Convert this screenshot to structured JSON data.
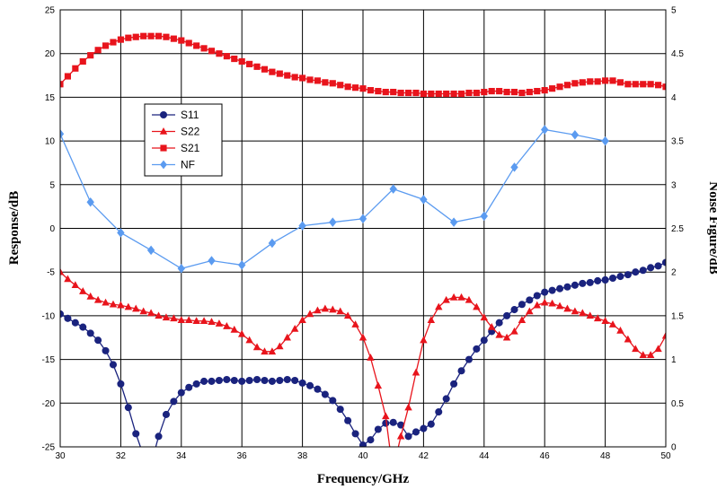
{
  "chart_data": {
    "type": "line",
    "xlabel": "Frequency/GHz",
    "ylabel": "Response/dB",
    "y2label": "Noise Figure/dB",
    "xlim": [
      30,
      50
    ],
    "ylim": [
      -25,
      25
    ],
    "y2lim": [
      0,
      5
    ],
    "x_ticks": [
      30,
      32,
      34,
      36,
      38,
      40,
      42,
      44,
      46,
      48,
      50
    ],
    "y_ticks": [
      -25,
      -20,
      -15,
      -10,
      -5,
      0,
      5,
      10,
      15,
      20,
      25
    ],
    "y2_ticks": [
      0,
      0.5,
      1,
      1.5,
      2,
      2.5,
      3,
      3.5,
      4,
      4.5,
      5
    ],
    "grid": true,
    "legend_position": "upper-left inside",
    "series": [
      {
        "name": "S11",
        "axis": "left",
        "color": "#1a237e",
        "marker": "circle",
        "points": [
          [
            30,
            -9.8
          ],
          [
            30.25,
            -10.3
          ],
          [
            30.5,
            -10.8
          ],
          [
            30.75,
            -11.3
          ],
          [
            31,
            -12
          ],
          [
            31.25,
            -12.8
          ],
          [
            31.5,
            -14
          ],
          [
            31.75,
            -15.6
          ],
          [
            32,
            -17.8
          ],
          [
            32.25,
            -20.5
          ],
          [
            32.5,
            -23.5
          ],
          [
            32.75,
            -26
          ],
          [
            33,
            -27
          ],
          [
            33.25,
            -23.8
          ],
          [
            33.5,
            -21.3
          ],
          [
            33.75,
            -19.8
          ],
          [
            34,
            -18.8
          ],
          [
            34.25,
            -18.2
          ],
          [
            34.5,
            -17.8
          ],
          [
            34.75,
            -17.5
          ],
          [
            35,
            -17.5
          ],
          [
            35.25,
            -17.4
          ],
          [
            35.5,
            -17.3
          ],
          [
            35.75,
            -17.4
          ],
          [
            36,
            -17.5
          ],
          [
            36.25,
            -17.4
          ],
          [
            36.5,
            -17.3
          ],
          [
            36.75,
            -17.4
          ],
          [
            37,
            -17.5
          ],
          [
            37.25,
            -17.4
          ],
          [
            37.5,
            -17.3
          ],
          [
            37.75,
            -17.4
          ],
          [
            38,
            -17.7
          ],
          [
            38.25,
            -18
          ],
          [
            38.5,
            -18.4
          ],
          [
            38.75,
            -19
          ],
          [
            39,
            -19.7
          ],
          [
            39.25,
            -20.7
          ],
          [
            39.5,
            -22
          ],
          [
            39.75,
            -23.5
          ],
          [
            40,
            -24.8
          ],
          [
            40.25,
            -24.2
          ],
          [
            40.5,
            -23
          ],
          [
            40.75,
            -22.3
          ],
          [
            41,
            -22.2
          ],
          [
            41.25,
            -22.5
          ],
          [
            41.5,
            -23.8
          ],
          [
            41.75,
            -23.3
          ],
          [
            42,
            -22.9
          ],
          [
            42.25,
            -22.4
          ],
          [
            42.5,
            -21
          ],
          [
            42.75,
            -19.5
          ],
          [
            43,
            -17.8
          ],
          [
            43.25,
            -16.3
          ],
          [
            43.5,
            -15
          ],
          [
            43.75,
            -13.8
          ],
          [
            44,
            -12.8
          ],
          [
            44.25,
            -11.8
          ],
          [
            44.5,
            -10.8
          ],
          [
            44.75,
            -10
          ],
          [
            45,
            -9.3
          ],
          [
            45.25,
            -8.7
          ],
          [
            45.5,
            -8.2
          ],
          [
            45.75,
            -7.7
          ],
          [
            46,
            -7.3
          ],
          [
            46.25,
            -7.1
          ],
          [
            46.5,
            -6.9
          ],
          [
            46.75,
            -6.7
          ],
          [
            47,
            -6.5
          ],
          [
            47.25,
            -6.3
          ],
          [
            47.5,
            -6.2
          ],
          [
            47.75,
            -6
          ],
          [
            48,
            -5.9
          ],
          [
            48.25,
            -5.7
          ],
          [
            48.5,
            -5.5
          ],
          [
            48.75,
            -5.3
          ],
          [
            49,
            -5
          ],
          [
            49.25,
            -4.8
          ],
          [
            49.5,
            -4.5
          ],
          [
            49.75,
            -4.3
          ],
          [
            50,
            -3.9
          ]
        ]
      },
      {
        "name": "S22",
        "axis": "left",
        "color": "#e8141c",
        "marker": "triangle",
        "points": [
          [
            30,
            -5
          ],
          [
            30.25,
            -5.8
          ],
          [
            30.5,
            -6.5
          ],
          [
            30.75,
            -7.2
          ],
          [
            31,
            -7.8
          ],
          [
            31.25,
            -8.2
          ],
          [
            31.5,
            -8.5
          ],
          [
            31.75,
            -8.7
          ],
          [
            32,
            -8.8
          ],
          [
            32.25,
            -9
          ],
          [
            32.5,
            -9.2
          ],
          [
            32.75,
            -9.5
          ],
          [
            33,
            -9.7
          ],
          [
            33.25,
            -10
          ],
          [
            33.5,
            -10.2
          ],
          [
            33.75,
            -10.3
          ],
          [
            34,
            -10.5
          ],
          [
            34.25,
            -10.5
          ],
          [
            34.5,
            -10.6
          ],
          [
            34.75,
            -10.6
          ],
          [
            35,
            -10.7
          ],
          [
            35.25,
            -10.9
          ],
          [
            35.5,
            -11.2
          ],
          [
            35.75,
            -11.6
          ],
          [
            36,
            -12.1
          ],
          [
            36.25,
            -12.8
          ],
          [
            36.5,
            -13.6
          ],
          [
            36.75,
            -14.1
          ],
          [
            37,
            -14.1
          ],
          [
            37.25,
            -13.5
          ],
          [
            37.5,
            -12.5
          ],
          [
            37.75,
            -11.5
          ],
          [
            38,
            -10.5
          ],
          [
            38.25,
            -9.8
          ],
          [
            38.5,
            -9.4
          ],
          [
            38.75,
            -9.2
          ],
          [
            39,
            -9.3
          ],
          [
            39.25,
            -9.5
          ],
          [
            39.5,
            -10
          ],
          [
            39.75,
            -11
          ],
          [
            40,
            -12.5
          ],
          [
            40.25,
            -14.8
          ],
          [
            40.5,
            -18
          ],
          [
            40.75,
            -21.5
          ],
          [
            40.9,
            -25.5
          ],
          [
            41.1,
            -26
          ],
          [
            41.25,
            -23.8
          ],
          [
            41.5,
            -20.5
          ],
          [
            41.75,
            -16.5
          ],
          [
            42,
            -12.8
          ],
          [
            42.25,
            -10.5
          ],
          [
            42.5,
            -9
          ],
          [
            42.75,
            -8.2
          ],
          [
            43,
            -7.9
          ],
          [
            43.25,
            -7.9
          ],
          [
            43.5,
            -8.2
          ],
          [
            43.75,
            -9
          ],
          [
            44,
            -10.2
          ],
          [
            44.25,
            -11.3
          ],
          [
            44.5,
            -12.2
          ],
          [
            44.75,
            -12.5
          ],
          [
            45,
            -11.8
          ],
          [
            45.25,
            -10.5
          ],
          [
            45.5,
            -9.5
          ],
          [
            45.75,
            -8.8
          ],
          [
            46,
            -8.5
          ],
          [
            46.25,
            -8.6
          ],
          [
            46.5,
            -8.9
          ],
          [
            46.75,
            -9.2
          ],
          [
            47,
            -9.5
          ],
          [
            47.25,
            -9.7
          ],
          [
            47.5,
            -10
          ],
          [
            47.75,
            -10.3
          ],
          [
            48,
            -10.6
          ],
          [
            48.25,
            -11
          ],
          [
            48.5,
            -11.7
          ],
          [
            48.75,
            -12.7
          ],
          [
            49,
            -13.8
          ],
          [
            49.25,
            -14.5
          ],
          [
            49.5,
            -14.5
          ],
          [
            49.75,
            -13.8
          ],
          [
            50,
            -12.3
          ]
        ]
      },
      {
        "name": "S21",
        "axis": "left",
        "color": "#e8141c",
        "marker": "square",
        "points": [
          [
            30,
            16.5
          ],
          [
            30.25,
            17.4
          ],
          [
            30.5,
            18.3
          ],
          [
            30.75,
            19.1
          ],
          [
            31,
            19.8
          ],
          [
            31.25,
            20.4
          ],
          [
            31.5,
            20.9
          ],
          [
            31.75,
            21.3
          ],
          [
            32,
            21.6
          ],
          [
            32.25,
            21.8
          ],
          [
            32.5,
            21.9
          ],
          [
            32.75,
            22
          ],
          [
            33,
            22
          ],
          [
            33.25,
            22
          ],
          [
            33.5,
            21.9
          ],
          [
            33.75,
            21.7
          ],
          [
            34,
            21.5
          ],
          [
            34.25,
            21.2
          ],
          [
            34.5,
            20.9
          ],
          [
            34.75,
            20.6
          ],
          [
            35,
            20.3
          ],
          [
            35.25,
            20
          ],
          [
            35.5,
            19.7
          ],
          [
            35.75,
            19.4
          ],
          [
            36,
            19.1
          ],
          [
            36.25,
            18.8
          ],
          [
            36.5,
            18.5
          ],
          [
            36.75,
            18.2
          ],
          [
            37,
            17.9
          ],
          [
            37.25,
            17.7
          ],
          [
            37.5,
            17.5
          ],
          [
            37.75,
            17.3
          ],
          [
            38,
            17.2
          ],
          [
            38.25,
            17
          ],
          [
            38.5,
            16.9
          ],
          [
            38.75,
            16.7
          ],
          [
            39,
            16.6
          ],
          [
            39.25,
            16.4
          ],
          [
            39.5,
            16.2
          ],
          [
            39.75,
            16.1
          ],
          [
            40,
            16
          ],
          [
            40.25,
            15.8
          ],
          [
            40.5,
            15.7
          ],
          [
            40.75,
            15.6
          ],
          [
            41,
            15.6
          ],
          [
            41.25,
            15.5
          ],
          [
            41.5,
            15.5
          ],
          [
            41.75,
            15.5
          ],
          [
            42,
            15.4
          ],
          [
            42.25,
            15.4
          ],
          [
            42.5,
            15.4
          ],
          [
            42.75,
            15.4
          ],
          [
            43,
            15.4
          ],
          [
            43.25,
            15.4
          ],
          [
            43.5,
            15.5
          ],
          [
            43.75,
            15.5
          ],
          [
            44,
            15.6
          ],
          [
            44.25,
            15.7
          ],
          [
            44.5,
            15.7
          ],
          [
            44.75,
            15.6
          ],
          [
            45,
            15.6
          ],
          [
            45.25,
            15.5
          ],
          [
            45.5,
            15.6
          ],
          [
            45.75,
            15.7
          ],
          [
            46,
            15.8
          ],
          [
            46.25,
            16
          ],
          [
            46.5,
            16.2
          ],
          [
            46.75,
            16.4
          ],
          [
            47,
            16.6
          ],
          [
            47.25,
            16.7
          ],
          [
            47.5,
            16.8
          ],
          [
            47.75,
            16.8
          ],
          [
            48,
            16.9
          ],
          [
            48.25,
            16.9
          ],
          [
            48.5,
            16.7
          ],
          [
            48.75,
            16.5
          ],
          [
            49,
            16.5
          ],
          [
            49.25,
            16.5
          ],
          [
            49.5,
            16.5
          ],
          [
            49.75,
            16.4
          ],
          [
            50,
            16.2
          ]
        ]
      },
      {
        "name": "NF",
        "axis": "right",
        "color": "#5b9bf0",
        "marker": "diamond",
        "points": [
          [
            30,
            3.58
          ],
          [
            31,
            2.8
          ],
          [
            32,
            2.45
          ],
          [
            33,
            2.25
          ],
          [
            34,
            2.04
          ],
          [
            35,
            2.13
          ],
          [
            36,
            2.08
          ],
          [
            37,
            2.33
          ],
          [
            38,
            2.53
          ],
          [
            39,
            2.57
          ],
          [
            40,
            2.61
          ],
          [
            41,
            2.95
          ],
          [
            42,
            2.83
          ],
          [
            43,
            2.57
          ],
          [
            44,
            2.64
          ],
          [
            45,
            3.2
          ],
          [
            46,
            3.63
          ],
          [
            47,
            3.57
          ],
          [
            48,
            3.5
          ]
        ]
      }
    ]
  }
}
